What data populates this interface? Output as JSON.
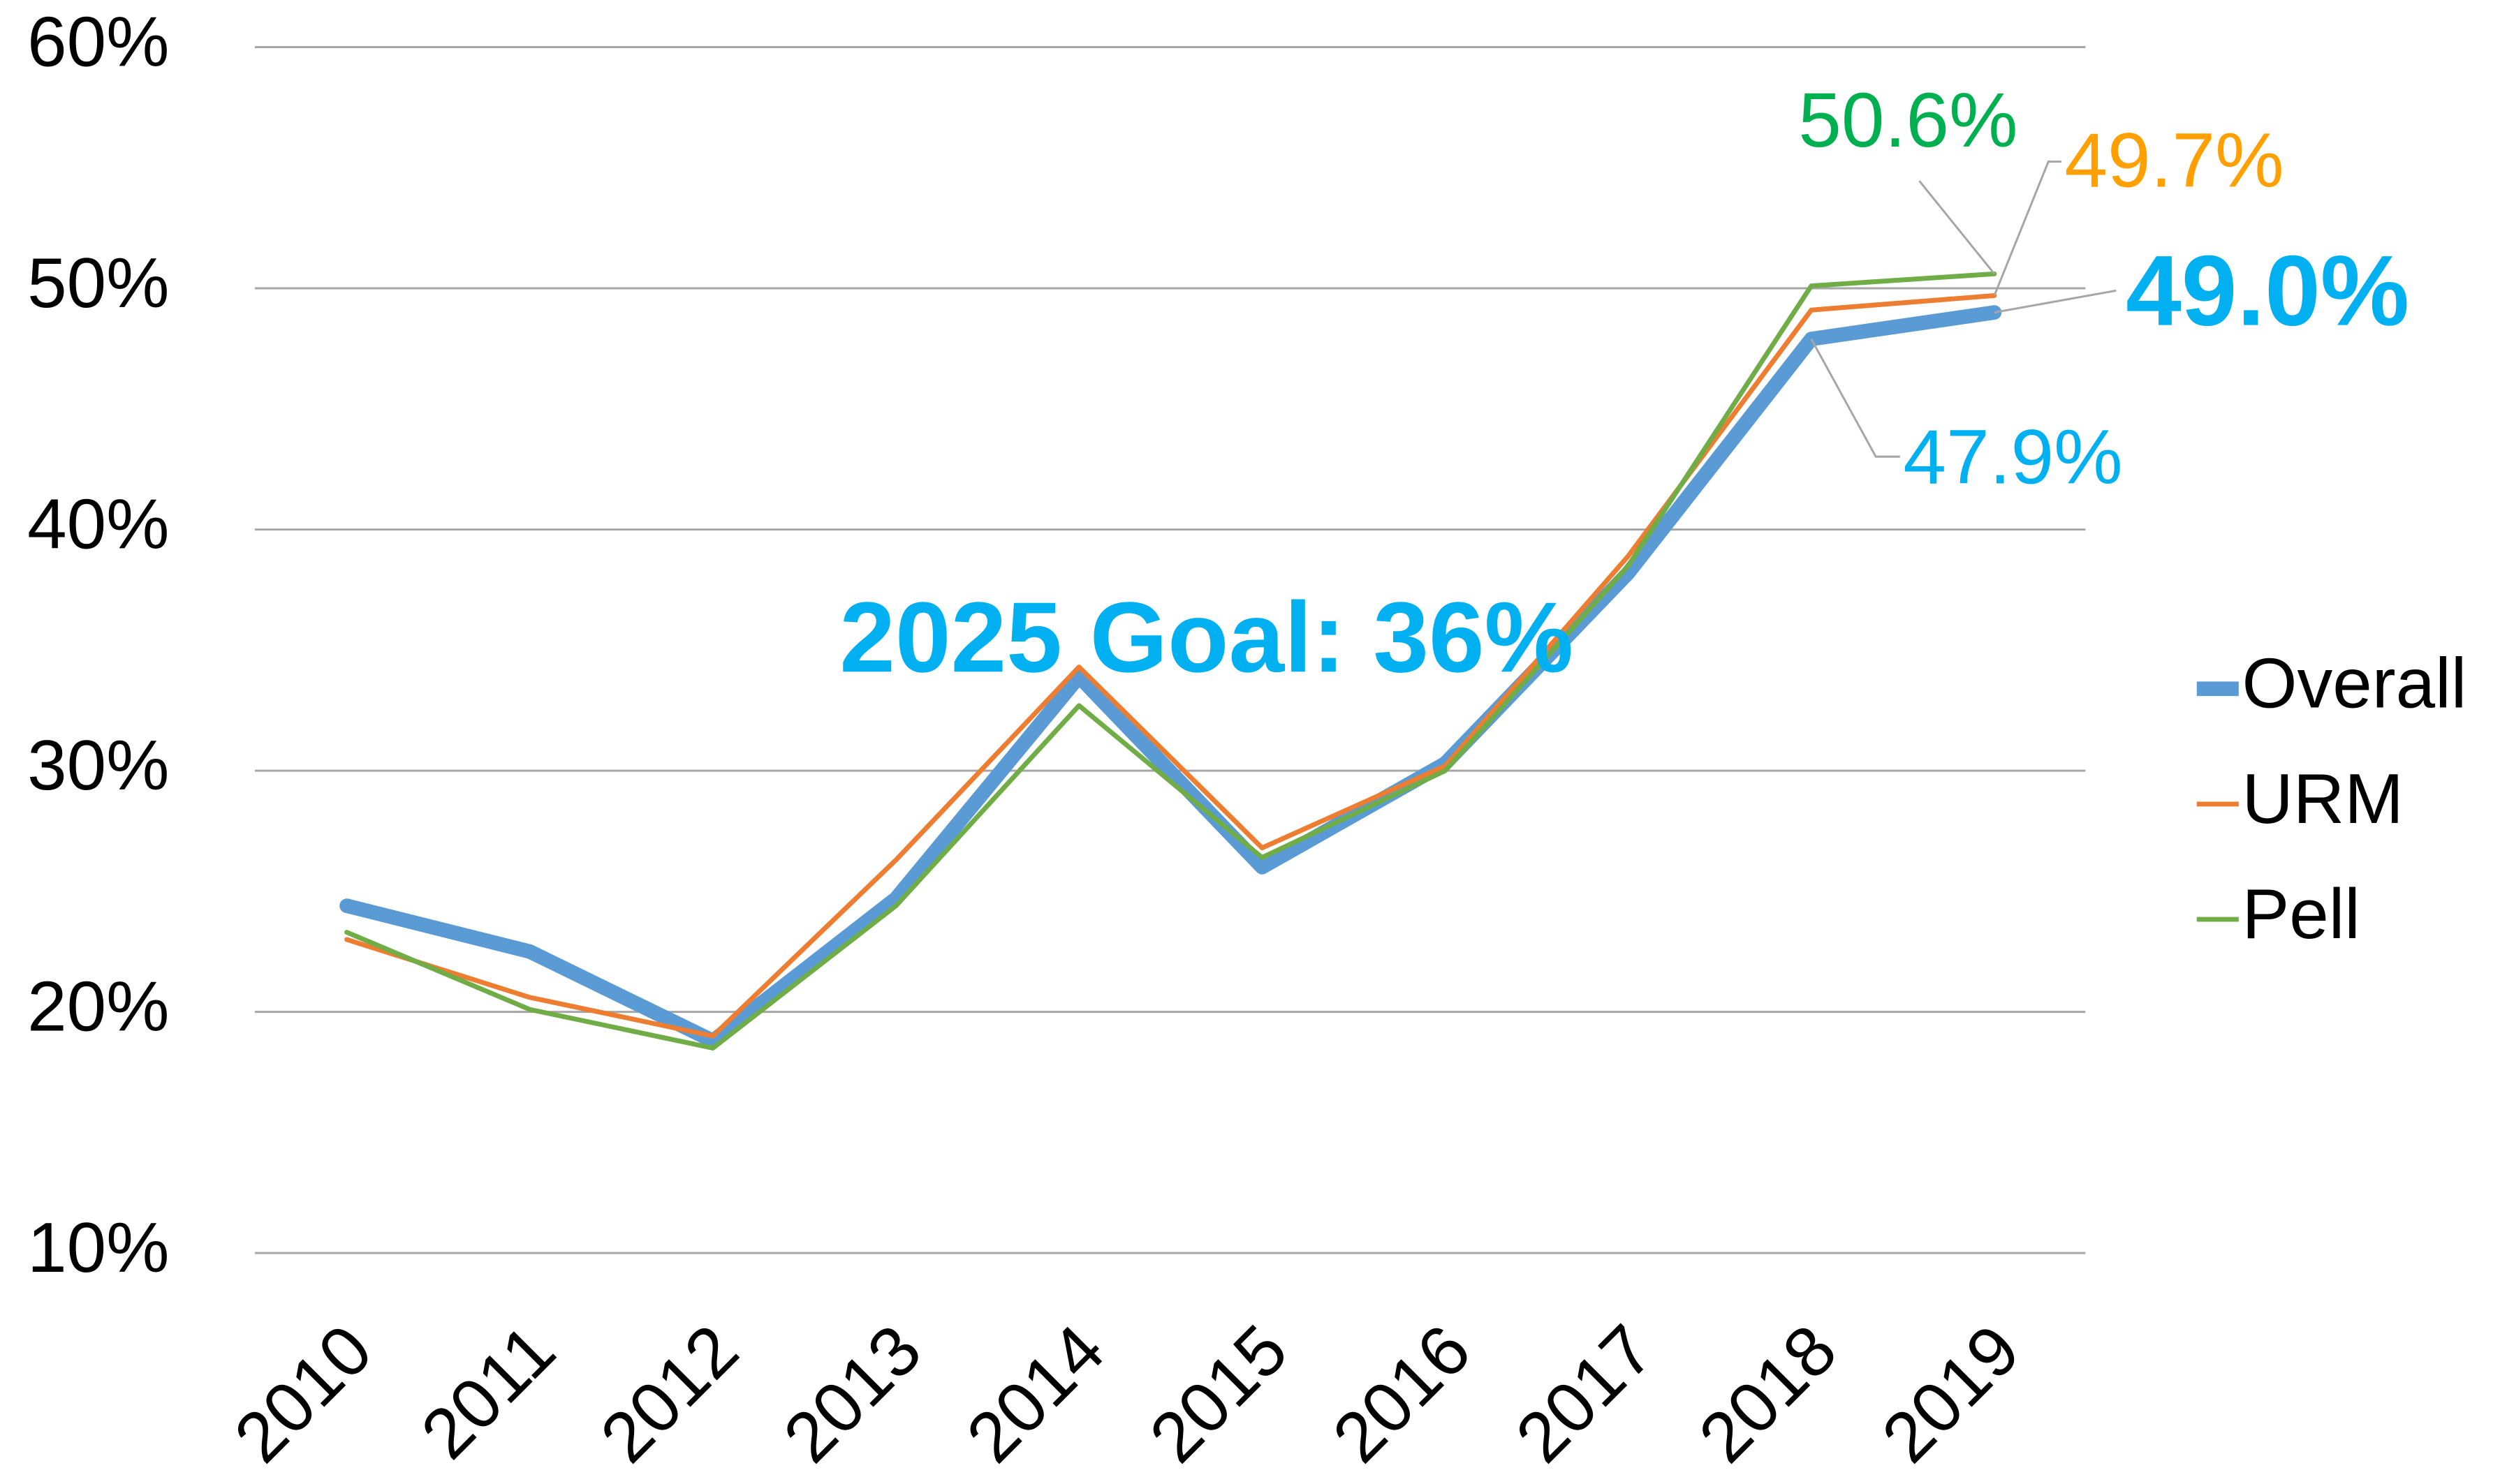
{
  "chart_data": {
    "type": "line",
    "annotations": [
      "2025 Goal: 36%"
    ],
    "categories": [
      "2010",
      "2011",
      "2012",
      "2013",
      "2014",
      "2015",
      "2016",
      "2017",
      "2018",
      "2019"
    ],
    "series": [
      {
        "name": "Overall",
        "color": "#5b9bd5",
        "label_color": "#00b0f0",
        "values": [
          24.4,
          22.5,
          18.8,
          24.7,
          33.9,
          26.0,
          30.3,
          38.2,
          47.9,
          49.0
        ],
        "value_labels": [
          null,
          null,
          null,
          null,
          null,
          null,
          null,
          null,
          "47.9%",
          "49.0%"
        ]
      },
      {
        "name": "URM",
        "color": "#ed7d31",
        "label_color": "#ffa000",
        "values": [
          23.0,
          20.6,
          19.0,
          26.3,
          34.3,
          26.8,
          30.2,
          38.9,
          49.1,
          49.7
        ],
        "value_labels": [
          null,
          null,
          null,
          null,
          null,
          null,
          null,
          null,
          null,
          "49.7%"
        ]
      },
      {
        "name": "Pell",
        "color": "#70ad47",
        "label_color": "#00b050",
        "values": [
          23.3,
          20.1,
          18.5,
          24.4,
          32.7,
          26.4,
          30.0,
          38.5,
          50.1,
          50.6
        ],
        "value_labels": [
          null,
          null,
          null,
          null,
          null,
          null,
          null,
          null,
          null,
          "50.6%"
        ]
      }
    ],
    "ylim": [
      10,
      60
    ],
    "yticks": [
      {
        "value": 10,
        "label": "10%"
      },
      {
        "value": 20,
        "label": "20%"
      },
      {
        "value": 30,
        "label": "30%"
      },
      {
        "value": 40,
        "label": "40%"
      },
      {
        "value": 50,
        "label": "50%"
      },
      {
        "value": 60,
        "label": "60%"
      }
    ],
    "grid": true,
    "legend": "right"
  }
}
